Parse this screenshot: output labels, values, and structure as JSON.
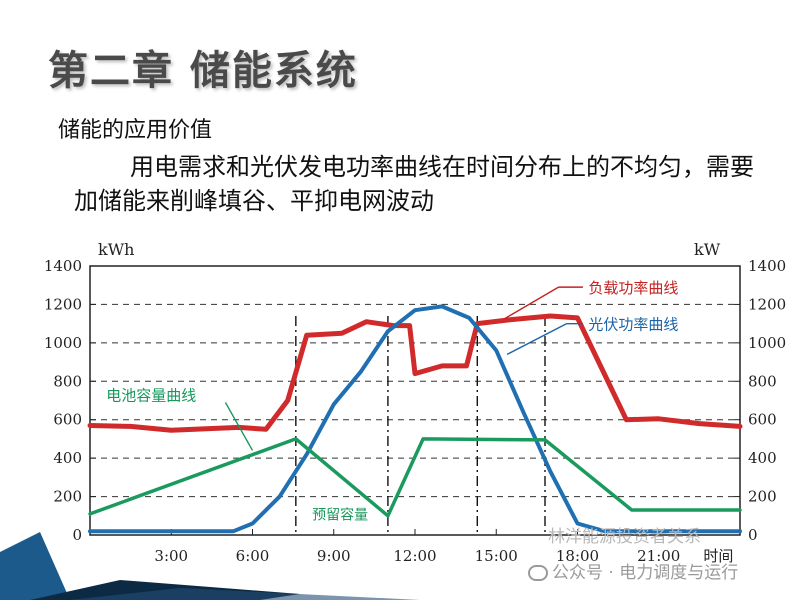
{
  "slide": {
    "title": "第二章  储能系统",
    "subtitle": "储能的应用价值",
    "description": "用电需求和光伏发电功率曲线在时间分布上的不均匀，需要加储能来削峰填谷、平抑电网波动"
  },
  "chart_data": {
    "type": "line",
    "y_left_unit": "kWh",
    "y_right_unit": "kW",
    "x_label": "时间",
    "x_ticks": [
      "3:00",
      "6:00",
      "9:00",
      "12:00",
      "15:00",
      "18:00",
      "21:00"
    ],
    "x_range": [
      0,
      24
    ],
    "y_range": [
      0,
      1400
    ],
    "y_ticks": [
      0,
      200,
      400,
      600,
      800,
      1000,
      1200,
      1400
    ],
    "grid": "dashed-horizontal",
    "series": [
      {
        "name": "负载功率曲线",
        "color": "#d12a2a",
        "x": [
          0,
          1.5,
          3,
          5.5,
          6.5,
          7.3,
          8,
          9.3,
          10.2,
          11.2,
          11.8,
          12,
          13,
          13.9,
          14.3,
          15.5,
          17,
          18,
          19.8,
          21,
          22.5,
          24
        ],
        "y": [
          570,
          565,
          545,
          560,
          550,
          700,
          1040,
          1050,
          1110,
          1090,
          1090,
          840,
          880,
          880,
          1100,
          1120,
          1140,
          1130,
          600,
          605,
          580,
          565
        ]
      },
      {
        "name": "光伏功率曲线",
        "color": "#1f6fb2",
        "x": [
          0,
          2,
          4,
          5.3,
          6,
          7,
          8,
          9,
          10,
          11,
          12,
          13,
          14,
          15,
          16,
          17,
          18,
          19,
          21,
          24
        ],
        "y": [
          20,
          20,
          20,
          20,
          60,
          200,
          420,
          680,
          850,
          1060,
          1170,
          1190,
          1130,
          960,
          640,
          330,
          60,
          20,
          20,
          20
        ]
      },
      {
        "name": "电池容量曲线",
        "color": "#1b9a5e",
        "x": [
          0,
          7.6,
          11,
          12.3,
          16.8,
          20,
          24
        ],
        "y": [
          110,
          500,
          100,
          500,
          495,
          130,
          130
        ]
      }
    ],
    "annotations": [
      {
        "text": "预留容量",
        "x": 11,
        "y": 100
      },
      {
        "text": "电池容量曲线",
        "series": "电池容量曲线"
      },
      {
        "text": "负载功率曲线",
        "series": "负载功率曲线"
      },
      {
        "text": "光伏功率曲线",
        "series": "光伏功率曲线"
      }
    ],
    "vertical_markers_x": [
      7.6,
      11,
      14.3,
      16.8
    ]
  },
  "watermark": {
    "line1": "林洋能源投资者关系",
    "line2": "公众号 · 电力调度与运行"
  }
}
